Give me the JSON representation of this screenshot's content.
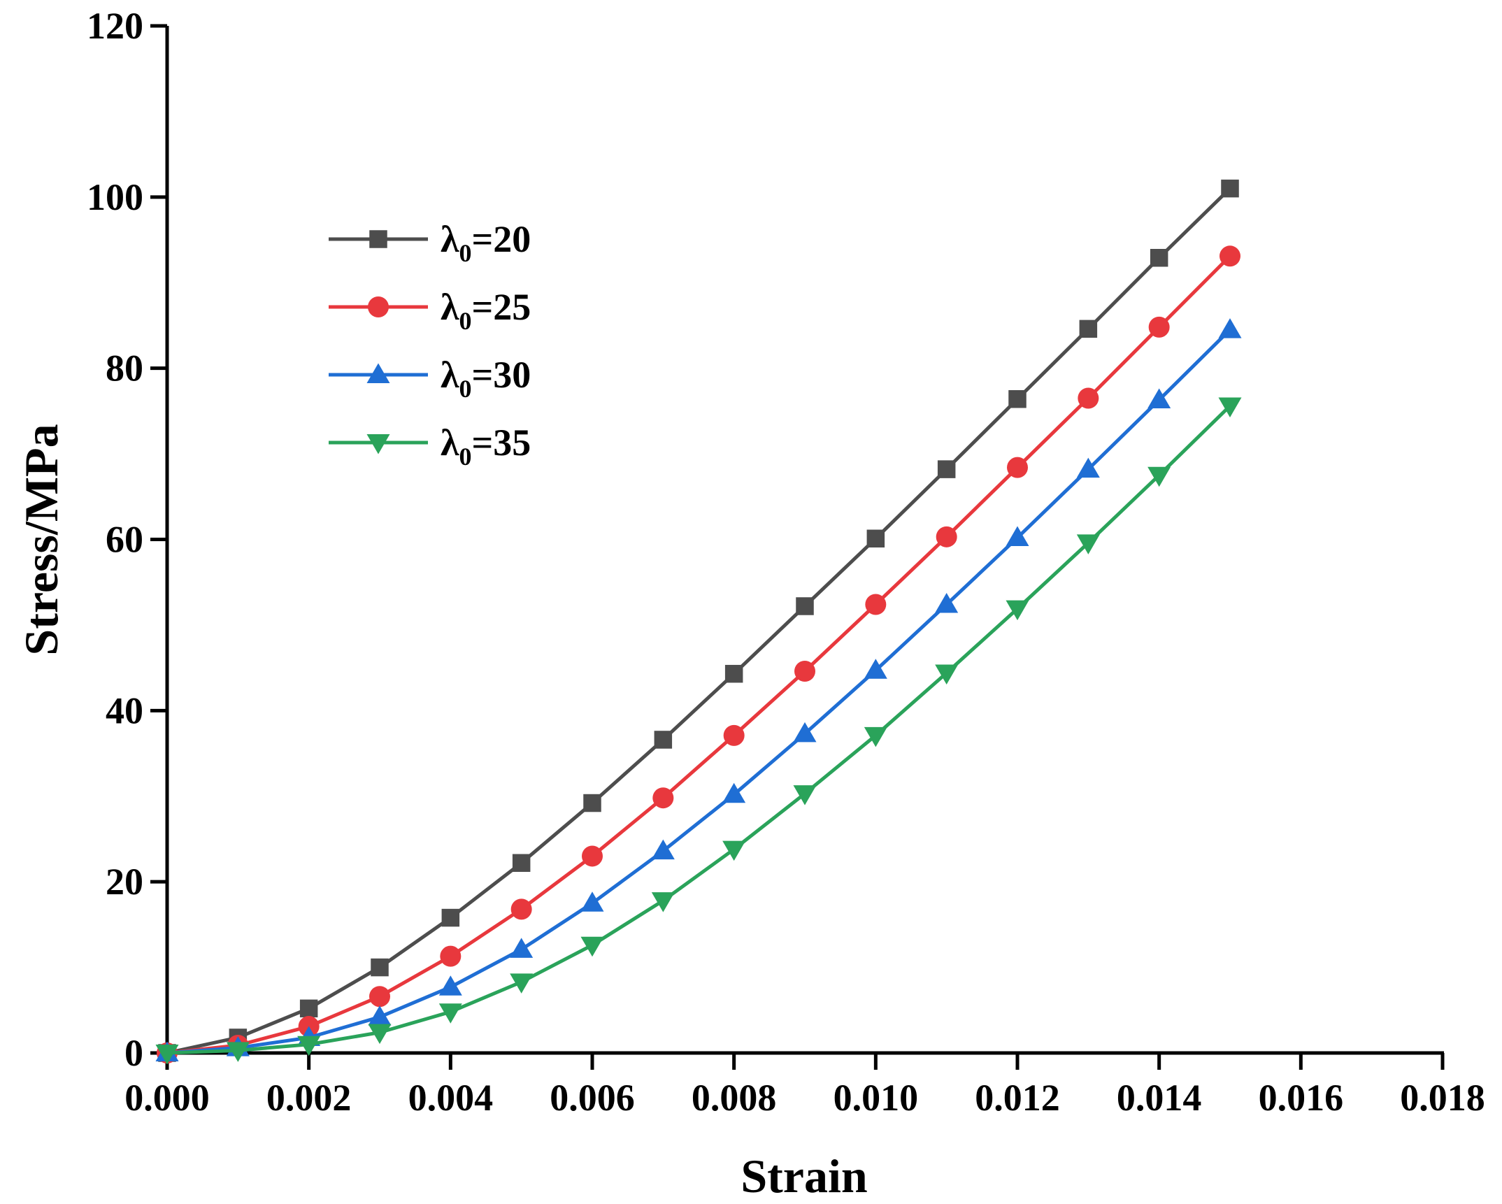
{
  "chart_data": {
    "type": "line",
    "title": "",
    "xlabel": "Strain",
    "ylabel": "Stress/MPa",
    "xlim": [
      0,
      0.018
    ],
    "ylim": [
      0,
      120
    ],
    "x_ticks": [
      0,
      0.002,
      0.004,
      0.006,
      0.008,
      0.01,
      0.012,
      0.014,
      0.016,
      0.018
    ],
    "x_tick_labels": [
      "0.000",
      "0.002",
      "0.004",
      "0.006",
      "0.008",
      "0.010",
      "0.012",
      "0.014",
      "0.016",
      "0.018"
    ],
    "y_ticks": [
      0,
      20,
      40,
      60,
      80,
      100,
      120
    ],
    "y_tick_labels": [
      "0",
      "20",
      "40",
      "60",
      "80",
      "100",
      "120"
    ],
    "grid": false,
    "legend_position": "top-left",
    "x": [
      0,
      0.001,
      0.002,
      0.003,
      0.004,
      0.005,
      0.006,
      0.007,
      0.008,
      0.009,
      0.01,
      0.011,
      0.012,
      0.013,
      0.014,
      0.015
    ],
    "series": [
      {
        "name": "λ0=20",
        "label_main": "λ",
        "label_sub": "0",
        "label_rest": "=20",
        "color": "#4d4d4d",
        "marker": "square",
        "values": [
          0,
          1.8,
          5.2,
          10.0,
          15.8,
          22.2,
          29.2,
          36.6,
          44.3,
          52.2,
          60.1,
          68.2,
          76.4,
          84.6,
          92.9,
          101.0
        ]
      },
      {
        "name": "λ0=25",
        "label_main": "λ",
        "label_sub": "0",
        "label_rest": "=25",
        "color": "#e8383d",
        "marker": "circle",
        "values": [
          0,
          0.9,
          3.1,
          6.6,
          11.3,
          16.8,
          23.0,
          29.8,
          37.1,
          44.6,
          52.4,
          60.3,
          68.4,
          76.5,
          84.8,
          93.1
        ]
      },
      {
        "name": "λ0=30",
        "label_main": "λ",
        "label_sub": "0",
        "label_rest": "=30",
        "color": "#1f6ed4",
        "marker": "triangle-up",
        "values": [
          0,
          0.6,
          1.8,
          4.2,
          7.7,
          12.1,
          17.5,
          23.6,
          30.2,
          37.3,
          44.7,
          52.4,
          60.2,
          68.2,
          76.3,
          84.5
        ]
      },
      {
        "name": "λ0=35",
        "label_main": "λ",
        "label_sub": "0",
        "label_rest": "=35",
        "color": "#2aa35a",
        "marker": "triangle-down",
        "values": [
          0,
          0.3,
          1.0,
          2.4,
          4.8,
          8.3,
          12.6,
          17.8,
          23.8,
          30.3,
          37.1,
          44.4,
          51.9,
          59.6,
          67.5,
          75.6
        ]
      }
    ]
  }
}
